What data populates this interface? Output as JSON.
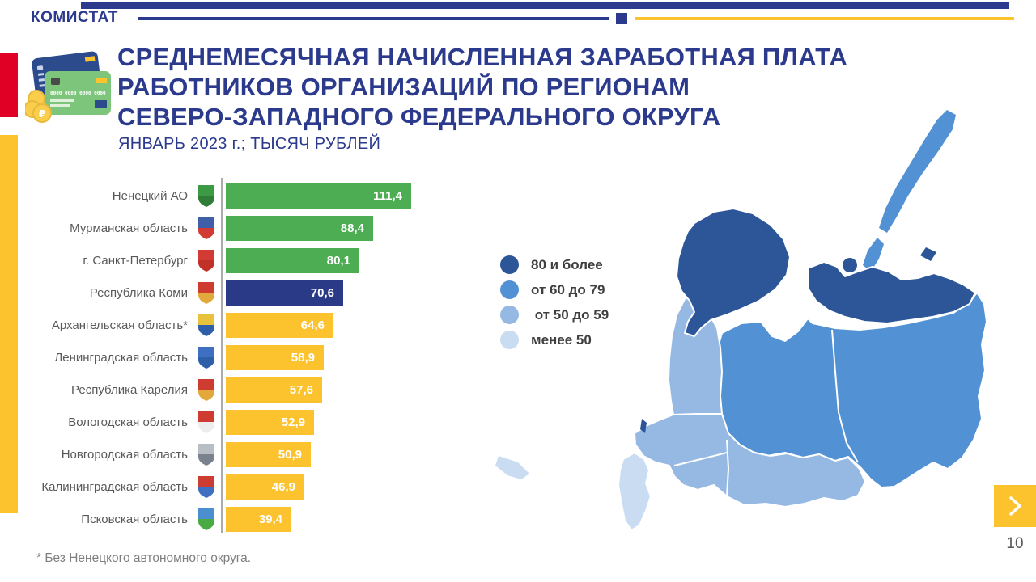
{
  "brand": "КОМИСТАТ",
  "header": {
    "title_line1": "СРЕДНЕМЕСЯЧНАЯ НАЧИСЛЕННАЯ ЗАРАБОТНАЯ ПЛАТА",
    "title_line2": "РАБОТНИКОВ ОРГАНИЗАЦИЙ ПО РЕГИОНАМ",
    "title_line3": "СЕВЕРО-ЗАПАДНОГО ФЕДЕРАЛЬНОГО ОКРУГА",
    "subtitle": "ЯНВАРЬ 2023 г.; ТЫСЯЧ РУБЛЕЙ"
  },
  "colors": {
    "accent_navy": "#2B3A8C",
    "red_accent": "#E00025",
    "yellow_accent": "#FDC32F",
    "bar_green": "#4CAD52",
    "bar_navy": "#2B3A87",
    "bar_yellow": "#FDC32F",
    "map_dark": "#2C5697",
    "map_medium": "#5291D4",
    "map_light": "#95B9E2",
    "map_lightest": "#C9DCF2"
  },
  "chart_data": {
    "type": "bar",
    "orientation": "horizontal",
    "title": "Среднемесячная начисленная заработная плата работников организаций по регионам Северо-Западного федерального округа",
    "period": "Январь 2023 г.",
    "unit": "тысяч рублей",
    "categories": [
      "Ненецкий АО",
      "Мурманская область",
      "г. Санкт-Петербург",
      "Республика Коми",
      "Архангельская область*",
      "Ленинградская область",
      "Республика Карелия",
      "Вологодская область",
      "Новгородская область",
      "Калининградская область",
      "Псковская область"
    ],
    "values": [
      111.4,
      88.4,
      80.1,
      70.6,
      64.6,
      58.9,
      57.6,
      52.9,
      50.9,
      46.9,
      39.4
    ],
    "xlim": [
      0,
      115
    ],
    "rows": [
      {
        "label": "Ненецкий АО",
        "value": 111.4,
        "display": "111,4",
        "color": "bar_green",
        "icon": "nenets-ao-coat-of-arms-icon",
        "icon_colors": [
          "#3C9A44",
          "#2F7D36"
        ]
      },
      {
        "label": "Мурманская область",
        "value": 88.4,
        "display": "88,4",
        "color": "bar_green",
        "icon": "murmansk-coat-of-arms-icon",
        "icon_colors": [
          "#3F5FA8",
          "#D23B33"
        ]
      },
      {
        "label": "г. Санкт-Петербург",
        "value": 80.1,
        "display": "80,1",
        "color": "bar_green",
        "icon": "saint-petersburg-coat-of-arms-icon",
        "icon_colors": [
          "#D23B33",
          "#C23128"
        ]
      },
      {
        "label": "Республика Коми",
        "value": 70.6,
        "display": "70,6",
        "color": "bar_navy",
        "icon": "komi-coat-of-arms-icon",
        "icon_colors": [
          "#CE3B30",
          "#E3A83C"
        ]
      },
      {
        "label": "Архангельская область*",
        "value": 64.6,
        "display": "64,6",
        "color": "bar_yellow",
        "icon": "arkhangelsk-coat-of-arms-icon",
        "icon_colors": [
          "#E8C23C",
          "#2F5FA8"
        ]
      },
      {
        "label": "Ленинградская область",
        "value": 58.9,
        "display": "58,9",
        "color": "bar_yellow",
        "icon": "leningrad-coat-of-arms-icon",
        "icon_colors": [
          "#3F6FC0",
          "#2F5FA8"
        ]
      },
      {
        "label": "Республика Карелия",
        "value": 57.6,
        "display": "57,6",
        "color": "bar_yellow",
        "icon": "karelia-coat-of-arms-icon",
        "icon_colors": [
          "#CE3B30",
          "#E3A83C"
        ]
      },
      {
        "label": "Вологодская область",
        "value": 52.9,
        "display": "52,9",
        "color": "bar_yellow",
        "icon": "vologda-coat-of-arms-icon",
        "icon_colors": [
          "#CE3B30",
          "#EDEDED"
        ]
      },
      {
        "label": "Новгородская область",
        "value": 50.9,
        "display": "50,9",
        "color": "bar_yellow",
        "icon": "novgorod-coat-of-arms-icon",
        "icon_colors": [
          "#B9BDC4",
          "#7A828E"
        ]
      },
      {
        "label": "Калининградская область",
        "value": 46.9,
        "display": "46,9",
        "color": "bar_yellow",
        "icon": "kaliningrad-coat-of-arms-icon",
        "icon_colors": [
          "#CE3B30",
          "#3F6FC0"
        ]
      },
      {
        "label": "Псковская область",
        "value": 39.4,
        "display": "39,4",
        "color": "bar_yellow",
        "icon": "pskov-coat-of-arms-icon",
        "icon_colors": [
          "#4C8FD0",
          "#49A942"
        ]
      }
    ],
    "map_legend": [
      {
        "label": "80 и более",
        "color": "map_dark"
      },
      {
        "label": "от 60 до 79",
        "color": "map_medium"
      },
      {
        "label": " от 50 до 59",
        "color": "map_light"
      },
      {
        "label": "менее 50",
        "color": "map_lightest"
      }
    ],
    "map_regions": [
      {
        "name": "Мурманская область",
        "band": "80 и более"
      },
      {
        "name": "Ненецкий АО",
        "band": "80 и более"
      },
      {
        "name": "г. Санкт-Петербург",
        "band": "80 и более"
      },
      {
        "name": "Республика Коми",
        "band": "от 60 до 79"
      },
      {
        "name": "Архангельская область",
        "band": "от 60 до 79"
      },
      {
        "name": "Республика Карелия",
        "band": "от 50 до 59"
      },
      {
        "name": "Ленинградская область",
        "band": "от 50 до 59"
      },
      {
        "name": "Вологодская область",
        "band": "от 50 до 59"
      },
      {
        "name": "Новгородская область",
        "band": "от 50 до 59"
      },
      {
        "name": "Псковская область",
        "band": "менее 50"
      },
      {
        "name": "Калининградская область",
        "band": "менее 50"
      }
    ]
  },
  "footnote": "* Без Ненецкого автономного округа.",
  "pager": {
    "page_number": "10",
    "next_label": "chevron-right"
  }
}
